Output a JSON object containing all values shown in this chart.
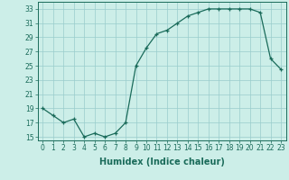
{
  "x": [
    0,
    1,
    2,
    3,
    4,
    5,
    6,
    7,
    8,
    9,
    10,
    11,
    12,
    13,
    14,
    15,
    16,
    17,
    18,
    19,
    20,
    21,
    22,
    23
  ],
  "y": [
    19,
    18,
    17,
    17.5,
    15,
    15.5,
    15,
    15.5,
    17,
    25,
    27.5,
    29.5,
    30,
    31,
    32,
    32.5,
    33,
    33,
    33,
    33,
    33,
    32.5,
    26,
    24.5
  ],
  "xlabel": "Humidex (Indice chaleur)",
  "ylim": [
    14.5,
    34
  ],
  "xlim": [
    -0.5,
    23.5
  ],
  "yticks": [
    15,
    17,
    19,
    21,
    23,
    25,
    27,
    29,
    31,
    33
  ],
  "xticks": [
    0,
    1,
    2,
    3,
    4,
    5,
    6,
    7,
    8,
    9,
    10,
    11,
    12,
    13,
    14,
    15,
    16,
    17,
    18,
    19,
    20,
    21,
    22,
    23
  ],
  "line_color": "#1a6b5a",
  "bg_color": "#cceee8",
  "grid_color": "#99cccc",
  "tick_color": "#1a6b5a",
  "label_color": "#1a6b5a",
  "tick_fontsize": 5.5,
  "xlabel_fontsize": 7.0
}
